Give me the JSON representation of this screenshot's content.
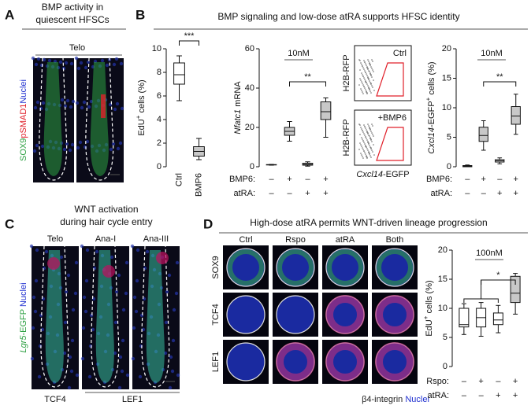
{
  "panels": {
    "A": {
      "letter": "A",
      "title": [
        "BMP activity in",
        "quiescent HFSCs"
      ],
      "stage": "Telo",
      "stain": [
        {
          "text": "SOX9",
          "color": "#2ea043"
        },
        {
          "text": "pSMAD1",
          "color": "#e0202a"
        },
        {
          "text": "Nuclei",
          "color": "#2030d0"
        }
      ]
    },
    "B": {
      "letter": "B",
      "title": "BMP signaling and low-dose atRA supports HFSC identity",
      "flow": {
        "gates": [
          "Ctrl",
          "+BMP6"
        ],
        "ylabel": "H2B-RFP",
        "xlabel": [
          {
            "text": "Cxcl14",
            "style": "italic"
          },
          {
            "text": "-EGFP"
          }
        ]
      }
    },
    "C": {
      "letter": "C",
      "title": [
        "WNT activation",
        "during hair cycle entry"
      ],
      "stages": [
        "Telo",
        "Ana-I",
        "Ana-III"
      ],
      "stain": [
        {
          "text": "Lgr5",
          "style": "italic",
          "color": "#2ea043"
        },
        {
          "text": "-EGFP",
          "color": "#2ea043"
        },
        {
          "text": " Nuclei",
          "color": "#2030d0"
        }
      ],
      "bottom": [
        {
          "text": "TCF4",
          "color": "#e0202a"
        },
        {
          "text": "LEF1",
          "color": "#e0202a"
        }
      ]
    },
    "D": {
      "letter": "D",
      "title": "High-dose atRA permits WNT-driven lineage progression",
      "columns": [
        "Ctrl",
        "Rspo",
        "atRA",
        "Both"
      ],
      "rows": [
        {
          "text": "SOX9",
          "color": "#2ea043"
        },
        {
          "text": "TCF4",
          "color": "#e0202a"
        },
        {
          "text": "LEF1",
          "color": "#e0202a"
        }
      ],
      "bottom": [
        {
          "text": "β4-integrin ",
          "color": "#222222"
        },
        {
          "text": "Nuclei",
          "color": "#2030d0"
        }
      ]
    }
  },
  "chart_data": [
    {
      "type": "box",
      "ylabel": [
        {
          "text": "EdU"
        },
        {
          "text": "+",
          "style": "sup"
        },
        {
          "text": " cells (%)"
        }
      ],
      "ylim": [
        0,
        10
      ],
      "yticks": [
        0,
        2,
        4,
        6,
        8,
        10
      ],
      "categories": [
        "Ctrl",
        "BMP6"
      ],
      "boxes": [
        {
          "min": 5.6,
          "q1": 7.0,
          "median": 7.8,
          "q3": 8.8,
          "max": 9.4
        },
        {
          "min": 0.6,
          "q1": 0.9,
          "median": 1.3,
          "q3": 1.7,
          "max": 2.4
        }
      ],
      "box_colors": [
        "#ffffff",
        "#c8c8c8"
      ],
      "significance": "***"
    },
    {
      "type": "box",
      "ylabel": [
        {
          "text": "Nfatc1",
          "style": "italic"
        },
        {
          "text": " mRNA"
        }
      ],
      "subtitle": "10nM",
      "ylim": [
        0,
        60
      ],
      "yticks": [
        0,
        20,
        40,
        60
      ],
      "conditions": [
        {
          "name": "BMP6:",
          "values": [
            "–",
            "+",
            "–",
            "+"
          ]
        },
        {
          "name": "atRA:",
          "values": [
            "–",
            "–",
            "+",
            "+"
          ]
        }
      ],
      "boxes": [
        {
          "min": 0.8,
          "q1": 0.9,
          "median": 1,
          "q3": 1.1,
          "max": 1.2
        },
        {
          "min": 13,
          "q1": 16,
          "median": 18,
          "q3": 20,
          "max": 23
        },
        {
          "min": 0.3,
          "q1": 0.8,
          "median": 1.2,
          "q3": 1.8,
          "max": 2.5
        },
        {
          "min": 15,
          "q1": 24,
          "median": 28,
          "q3": 33,
          "max": 35
        }
      ],
      "box_colors": [
        "#ffffff",
        "#c8c8c8",
        "#ffffff",
        "#c8c8c8"
      ],
      "significance": "**"
    },
    {
      "type": "box",
      "ylabel": [
        {
          "text": "Cxcl14",
          "style": "italic"
        },
        {
          "text": "-EGFP"
        },
        {
          "text": "+",
          "style": "sup"
        },
        {
          "text": " cells (%)"
        }
      ],
      "subtitle": "10nM",
      "ylim": [
        0,
        20
      ],
      "yticks": [
        0,
        5,
        10,
        15,
        20
      ],
      "conditions": [
        {
          "name": "BMP6:",
          "values": [
            "–",
            "+",
            "–",
            "+"
          ]
        },
        {
          "name": "atRA:",
          "values": [
            "–",
            "–",
            "+",
            "+"
          ]
        }
      ],
      "boxes": [
        {
          "min": 0,
          "q1": 0,
          "median": 0.1,
          "q3": 0.2,
          "max": 0.3
        },
        {
          "min": 2.8,
          "q1": 4.3,
          "median": 5.3,
          "q3": 6.7,
          "max": 7.8
        },
        {
          "min": 0.5,
          "q1": 0.8,
          "median": 1,
          "q3": 1.2,
          "max": 1.5
        },
        {
          "min": 5.5,
          "q1": 7.2,
          "median": 8.6,
          "q3": 10.2,
          "max": 12.3
        }
      ],
      "box_colors": [
        "#ffffff",
        "#c8c8c8",
        "#ffffff",
        "#c8c8c8"
      ],
      "significance": "**"
    },
    {
      "type": "box",
      "ylabel": [
        {
          "text": "EdU"
        },
        {
          "text": "+",
          "style": "sup"
        },
        {
          "text": " cells (%)"
        }
      ],
      "subtitle": "100nM",
      "ylim": [
        0,
        20
      ],
      "yticks": [
        0,
        5,
        10,
        15,
        20
      ],
      "conditions": [
        {
          "name": "Rspo:",
          "values": [
            "–",
            "+",
            "–",
            "+"
          ]
        },
        {
          "name": "atRA:",
          "values": [
            "–",
            "–",
            "+",
            "+"
          ]
        }
      ],
      "boxes": [
        {
          "min": 5.5,
          "q1": 6.8,
          "median": 7.2,
          "q3": 10,
          "max": 10.8
        },
        {
          "min": 5.2,
          "q1": 6.8,
          "median": 8.4,
          "q3": 10,
          "max": 11
        },
        {
          "min": 5.8,
          "q1": 7.2,
          "median": 8,
          "q3": 9.2,
          "max": 10.5
        },
        {
          "min": 9,
          "q1": 11,
          "median": 12.6,
          "q3": 15.5,
          "max": 16
        }
      ],
      "box_colors": [
        "#ffffff",
        "#ffffff",
        "#ffffff",
        "#c8c8c8"
      ],
      "significance": "*"
    }
  ]
}
